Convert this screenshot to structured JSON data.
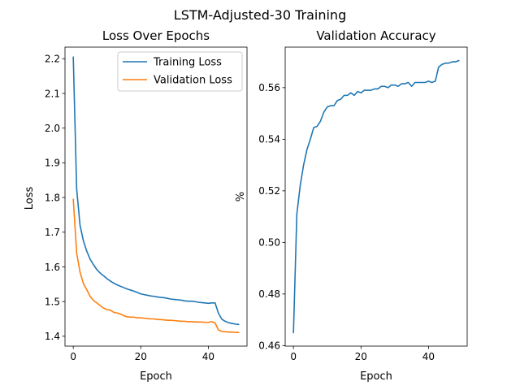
{
  "figure_title": "LSTM-Adjusted-30 Training",
  "colors": {
    "blue": "#1f77b4",
    "orange": "#ff7f0e"
  },
  "chart_data": [
    {
      "type": "line",
      "title": "Loss Over Epochs",
      "xlabel": "Epoch",
      "ylabel": "Loss",
      "xlim": [
        -2.45,
        51.45
      ],
      "ylim": [
        1.3715,
        2.2335
      ],
      "xticks": [
        0,
        20,
        40
      ],
      "yticks": [
        1.4,
        1.5,
        1.6,
        1.7,
        1.8,
        1.9,
        2.0,
        2.1,
        2.2
      ],
      "legend_position": "upper right",
      "series": [
        {
          "name": "Training Loss",
          "color": "#1f77b4",
          "x": [
            0,
            1,
            2,
            3,
            4,
            5,
            6,
            7,
            8,
            9,
            10,
            11,
            12,
            13,
            14,
            15,
            16,
            17,
            18,
            19,
            20,
            21,
            22,
            23,
            24,
            25,
            26,
            27,
            28,
            29,
            30,
            31,
            32,
            33,
            34,
            35,
            36,
            37,
            38,
            39,
            40,
            41,
            42,
            43,
            44,
            45,
            46,
            47,
            48,
            49
          ],
          "values": [
            2.205,
            1.825,
            1.72,
            1.675,
            1.645,
            1.622,
            1.606,
            1.592,
            1.582,
            1.574,
            1.566,
            1.559,
            1.553,
            1.548,
            1.544,
            1.54,
            1.536,
            1.533,
            1.53,
            1.526,
            1.522,
            1.52,
            1.518,
            1.516,
            1.515,
            1.513,
            1.512,
            1.511,
            1.509,
            1.507,
            1.506,
            1.505,
            1.504,
            1.502,
            1.501,
            1.501,
            1.5,
            1.498,
            1.497,
            1.496,
            1.495,
            1.496,
            1.496,
            1.466,
            1.449,
            1.443,
            1.439,
            1.437,
            1.435,
            1.434
          ]
        },
        {
          "name": "Validation Loss",
          "color": "#ff7f0e",
          "x": [
            0,
            1,
            2,
            3,
            4,
            5,
            6,
            7,
            8,
            9,
            10,
            11,
            12,
            13,
            14,
            15,
            16,
            17,
            18,
            19,
            20,
            21,
            22,
            23,
            24,
            25,
            26,
            27,
            28,
            29,
            30,
            31,
            32,
            33,
            34,
            35,
            36,
            37,
            38,
            39,
            40,
            41,
            42,
            43,
            44,
            45,
            46,
            47,
            48,
            49
          ],
          "values": [
            1.795,
            1.64,
            1.585,
            1.552,
            1.534,
            1.515,
            1.503,
            1.496,
            1.488,
            1.481,
            1.477,
            1.475,
            1.469,
            1.467,
            1.464,
            1.459,
            1.456,
            1.455,
            1.455,
            1.453,
            1.453,
            1.452,
            1.451,
            1.45,
            1.45,
            1.448,
            1.448,
            1.447,
            1.446,
            1.446,
            1.445,
            1.444,
            1.443,
            1.443,
            1.442,
            1.442,
            1.441,
            1.441,
            1.441,
            1.44,
            1.44,
            1.442,
            1.438,
            1.418,
            1.414,
            1.413,
            1.412,
            1.412,
            1.411,
            1.411
          ]
        }
      ]
    },
    {
      "type": "line",
      "title": "Validation Accuracy",
      "xlabel": "Epoch",
      "ylabel": "%",
      "xlim": [
        -2.45,
        51.45
      ],
      "ylim": [
        0.4598,
        0.5757
      ],
      "xticks": [
        0,
        20,
        40
      ],
      "yticks": [
        0.46,
        0.48,
        0.5,
        0.52,
        0.54,
        0.56
      ],
      "series": [
        {
          "color": "#1f77b4",
          "x": [
            0,
            1,
            2,
            3,
            4,
            5,
            6,
            7,
            8,
            9,
            10,
            11,
            12,
            13,
            14,
            15,
            16,
            17,
            18,
            19,
            20,
            21,
            22,
            23,
            24,
            25,
            26,
            27,
            28,
            29,
            30,
            31,
            32,
            33,
            34,
            35,
            36,
            37,
            38,
            39,
            40,
            41,
            42,
            43,
            44,
            45,
            46,
            47,
            48,
            49
          ],
          "values": [
            0.465,
            0.511,
            0.522,
            0.53,
            0.536,
            0.54,
            0.5445,
            0.545,
            0.547,
            0.5505,
            0.5525,
            0.553,
            0.553,
            0.555,
            0.5555,
            0.557,
            0.557,
            0.558,
            0.557,
            0.5585,
            0.558,
            0.559,
            0.559,
            0.559,
            0.5595,
            0.5595,
            0.5605,
            0.5605,
            0.56,
            0.561,
            0.561,
            0.5605,
            0.5615,
            0.5615,
            0.562,
            0.5605,
            0.562,
            0.562,
            0.562,
            0.562,
            0.5625,
            0.562,
            0.5625,
            0.568,
            0.569,
            0.5695,
            0.5695,
            0.57,
            0.57,
            0.5705
          ]
        }
      ]
    }
  ]
}
